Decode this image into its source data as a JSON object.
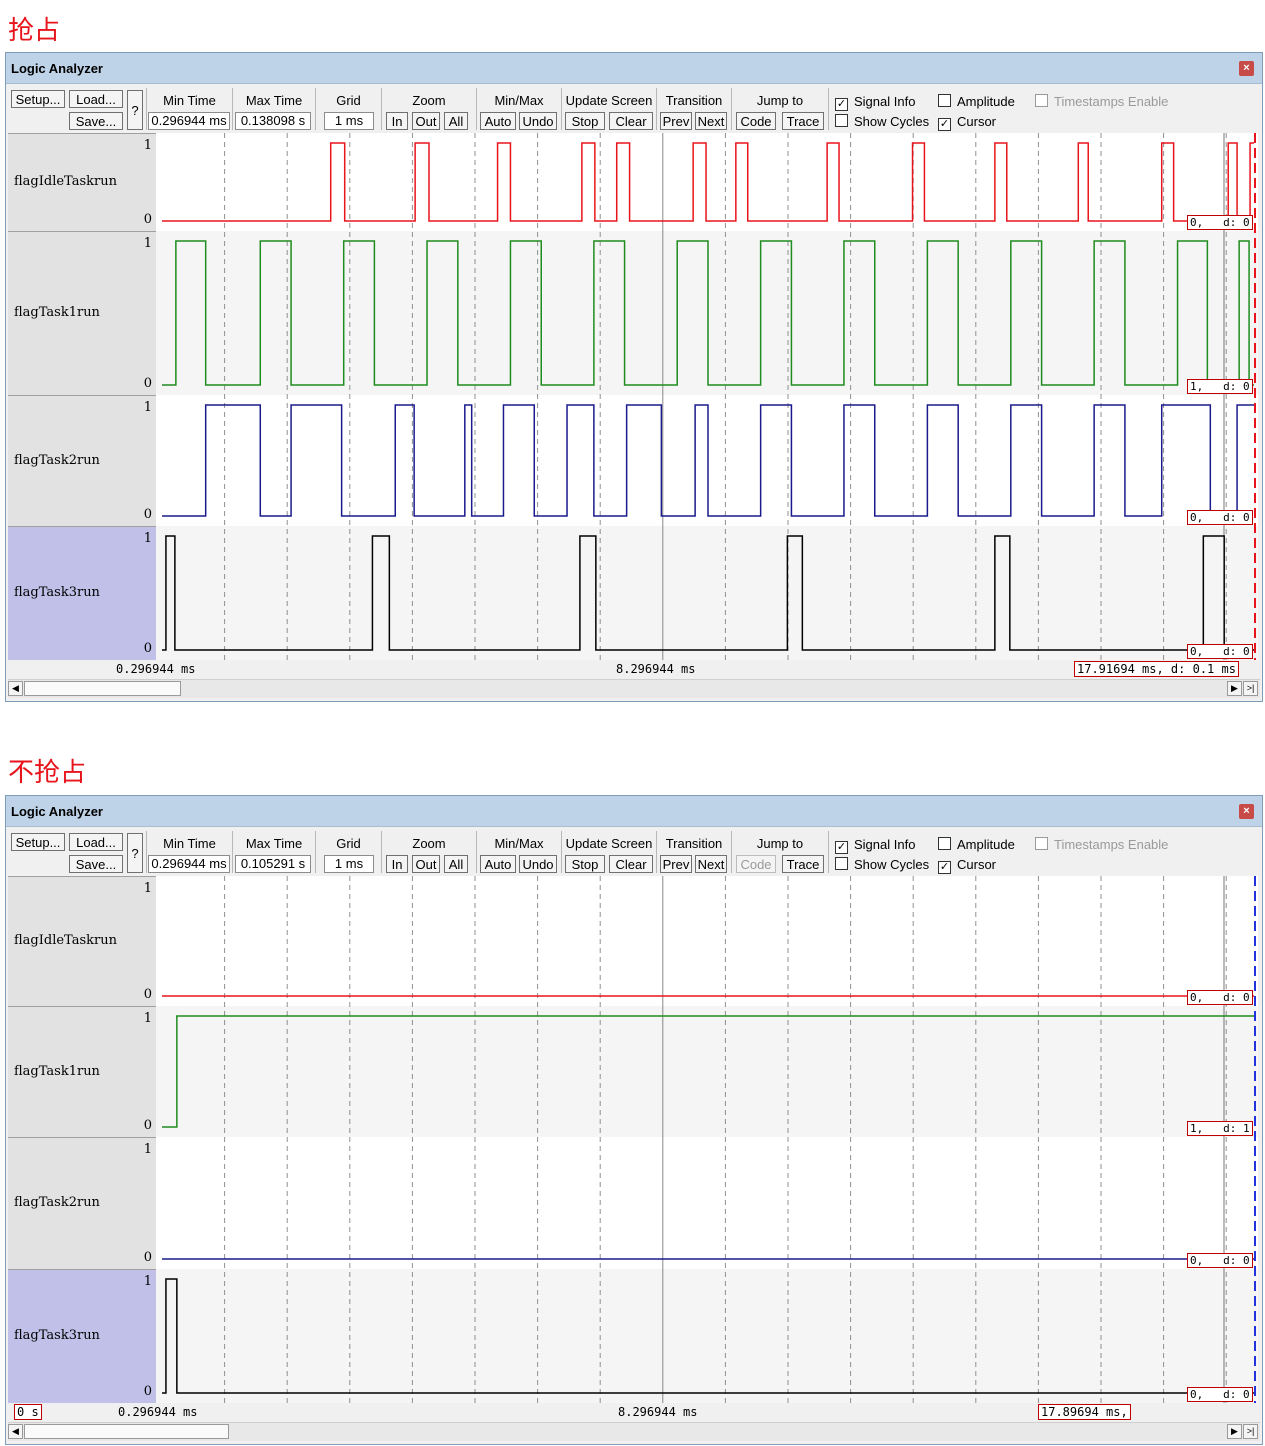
{
  "panels": [
    {
      "heading": "抢占",
      "window_title": "Logic Analyzer",
      "close_label": "×",
      "setup": {
        "setup_label": "Setup...",
        "load_label": "Load...",
        "save_label": "Save...",
        "help_label": "?"
      },
      "min_time": {
        "label": "Min Time",
        "value": "0.296944 ms"
      },
      "max_time": {
        "label": "Max Time",
        "value": "0.138098 s"
      },
      "grid": {
        "label": "Grid",
        "value": "1 ms"
      },
      "zoom": {
        "label": "Zoom",
        "in": "In",
        "out": "Out",
        "all": "All"
      },
      "minmax": {
        "label": "Min/Max",
        "auto": "Auto",
        "undo": "Undo"
      },
      "update": {
        "label": "Update Screen",
        "stop": "Stop",
        "clear": "Clear"
      },
      "transition": {
        "label": "Transition",
        "prev": "Prev",
        "next": "Next"
      },
      "jumpto": {
        "label": "Jump to",
        "code": "Code",
        "trace": "Trace",
        "code_disabled": false
      },
      "checkboxes": {
        "signal_info": {
          "label": "Signal Info",
          "checked": true
        },
        "amplitude": {
          "label": "Amplitude",
          "checked": false
        },
        "timestamps": {
          "label": "Timestamps Enable",
          "checked": false,
          "disabled": true
        },
        "show_cycles": {
          "label": "Show Cycles",
          "checked": false
        },
        "cursor": {
          "label": "Cursor",
          "checked": true
        }
      },
      "signals": [
        {
          "name": "flagIdleTaskrun",
          "high": "1",
          "low": "0",
          "color": "#e8141b",
          "value_label": "0,   d: 0",
          "edges": [
            0.0,
            0.1545,
            0.1673,
            0.2318,
            0.2445,
            0.3073,
            0.3191,
            0.3845,
            0.3964,
            0.4164,
            0.4282,
            0.4864,
            0.4982,
            0.5255,
            0.5364,
            0.6091,
            0.62,
            0.6873,
            0.6982,
            0.7627,
            0.7736,
            0.8391,
            0.8482,
            0.9155,
            0.9264,
            0.9764,
            0.9845,
            0.9964,
            1.0
          ]
        },
        {
          "name": "flagTask1run",
          "high": "1",
          "low": "0",
          "color": "#1e8c1e",
          "value_label": "1,   d: 0",
          "edges": [
            0.0,
            0.0127,
            0.04,
            0.09,
            0.1182,
            0.1664,
            0.1945,
            0.2427,
            0.2709,
            0.3191,
            0.3473,
            0.3955,
            0.4236,
            0.4718,
            0.5,
            0.5482,
            0.5764,
            0.6245,
            0.6527,
            0.7009,
            0.7291,
            0.7773,
            0.8055,
            0.8536,
            0.8818,
            0.93,
            0.9573,
            0.9864,
            0.9955,
            1.0
          ]
        },
        {
          "name": "flagTask2run",
          "high": "1",
          "low": "0",
          "color": "#1a1a8c",
          "value_label": "0,   d: 0",
          "edges": [
            0.0,
            0.04,
            0.09,
            0.1182,
            0.1645,
            0.2136,
            0.2309,
            0.2773,
            0.2836,
            0.3127,
            0.3409,
            0.3709,
            0.3955,
            0.4255,
            0.4573,
            0.4882,
            0.5,
            0.5482,
            0.5764,
            0.6245,
            0.6527,
            0.7009,
            0.7291,
            0.7773,
            0.8055,
            0.8536,
            0.8818,
            0.9155,
            0.96,
            0.9845,
            1.0
          ]
        },
        {
          "name": "flagTask3run",
          "high": "1",
          "low": "0",
          "color": "#000000",
          "value_label": "0,   d: 0",
          "edges": [
            0.0,
            0.0036,
            0.0118,
            0.1927,
            0.2082,
            0.3827,
            0.3973,
            0.5727,
            0.5864,
            0.7627,
            0.7764,
            0.9536,
            0.9727,
            1.0
          ]
        }
      ],
      "time_left": "0.296944 ms",
      "time_mid": "8.296944 ms",
      "cursor_time": "17.91694 ms,   d: 0.1 ms",
      "origin_label": ""
    },
    {
      "heading": "不抢占",
      "window_title": "Logic Analyzer",
      "close_label": "×",
      "setup": {
        "setup_label": "Setup...",
        "load_label": "Load...",
        "save_label": "Save...",
        "help_label": "?"
      },
      "min_time": {
        "label": "Min Time",
        "value": "0.296944 ms"
      },
      "max_time": {
        "label": "Max Time",
        "value": "0.105291 s"
      },
      "grid": {
        "label": "Grid",
        "value": "1 ms"
      },
      "zoom": {
        "label": "Zoom",
        "in": "In",
        "out": "Out",
        "all": "All"
      },
      "minmax": {
        "label": "Min/Max",
        "auto": "Auto",
        "undo": "Undo"
      },
      "update": {
        "label": "Update Screen",
        "stop": "Stop",
        "clear": "Clear"
      },
      "transition": {
        "label": "Transition",
        "prev": "Prev",
        "next": "Next"
      },
      "jumpto": {
        "label": "Jump to",
        "code": "Code",
        "trace": "Trace",
        "code_disabled": true
      },
      "checkboxes": {
        "signal_info": {
          "label": "Signal Info",
          "checked": true
        },
        "amplitude": {
          "label": "Amplitude",
          "checked": false
        },
        "timestamps": {
          "label": "Timestamps Enable",
          "checked": false,
          "disabled": true
        },
        "show_cycles": {
          "label": "Show Cycles",
          "checked": false
        },
        "cursor": {
          "label": "Cursor",
          "checked": true
        }
      },
      "signals": [
        {
          "name": "flagIdleTaskrun",
          "high": "1",
          "low": "0",
          "color": "#e8141b",
          "value_label": "0,   d: 0",
          "edges": [
            0.0,
            1.0
          ]
        },
        {
          "name": "flagTask1run",
          "high": "1",
          "low": "0",
          "color": "#1e8c1e",
          "value_label": "1,   d: 1",
          "edges": [
            0.0,
            0.0136,
            1.0
          ]
        },
        {
          "name": "flagTask2run",
          "high": "1",
          "low": "0",
          "color": "#1a1a8c",
          "value_label": "0,   d: 0",
          "edges": [
            0.0,
            1.0
          ]
        },
        {
          "name": "flagTask3run",
          "high": "1",
          "low": "0",
          "color": "#000000",
          "value_label": "0,   d: 0",
          "edges": [
            0.0,
            0.0036,
            0.0136,
            1.0
          ]
        }
      ],
      "time_left": "0.296944 ms",
      "time_mid": "8.296944 ms",
      "cursor_time": "17.89694 ms,",
      "origin_label": "0 s"
    }
  ]
}
